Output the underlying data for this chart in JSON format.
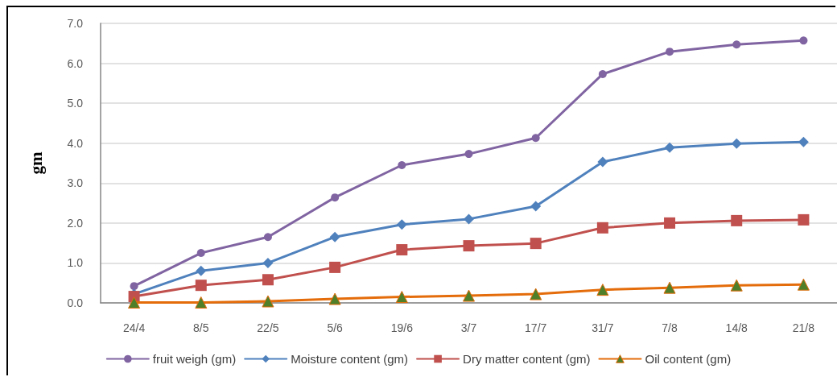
{
  "chart_data": {
    "type": "line",
    "ylabel": "gm",
    "categories": [
      "24/4",
      "8/5",
      "22/5",
      "5/6",
      "19/6",
      "3/7",
      "17/7",
      "31/7",
      "7/8",
      "14/8",
      "21/8"
    ],
    "series": [
      {
        "name": "fruit weigh (gm)",
        "color": "#8064a2",
        "marker": "circle",
        "values": [
          0.42,
          1.25,
          1.65,
          2.64,
          3.45,
          3.73,
          4.13,
          5.73,
          6.29,
          6.47,
          6.57
        ]
      },
      {
        "name": "Moisture content (gm)",
        "color": "#4f81bd",
        "marker": "diamond",
        "values": [
          0.22,
          0.8,
          1.0,
          1.65,
          1.96,
          2.1,
          2.42,
          3.53,
          3.89,
          3.99,
          4.03
        ]
      },
      {
        "name": "Dry matter content (gm)",
        "color": "#c0504d",
        "marker": "square",
        "values": [
          0.16,
          0.44,
          0.58,
          0.89,
          1.33,
          1.43,
          1.49,
          1.88,
          2.0,
          2.06,
          2.08
        ]
      },
      {
        "name": "Oil content (gm)",
        "color": "#e46c0a",
        "marker": "triangle",
        "colors": [
          "#4f7f28",
          "#4f7f28",
          "#4f7f28",
          "#4f7f28",
          "#4f7f28",
          "#4f7f28",
          "#4f7f28",
          "#4f7f28",
          "#4f7f28",
          "#4f7f28",
          "#4f7f28"
        ],
        "values": [
          0.01,
          0.01,
          0.04,
          0.1,
          0.15,
          0.18,
          0.22,
          0.33,
          0.38,
          0.44,
          0.46
        ]
      }
    ],
    "ylim": [
      0,
      7
    ],
    "yticks": [
      {
        "value": 0,
        "label": "0.0"
      },
      {
        "value": 1,
        "label": "1.0"
      },
      {
        "value": 2,
        "label": "2.0"
      },
      {
        "value": 3,
        "label": "3.0"
      },
      {
        "value": 4,
        "label": "4.0"
      },
      {
        "value": 5,
        "label": "5.0"
      },
      {
        "value": 6,
        "label": "6.0"
      },
      {
        "value": 7,
        "label": "7.0"
      }
    ],
    "grid": "y",
    "legend": "bottom",
    "line_style": "solid"
  }
}
